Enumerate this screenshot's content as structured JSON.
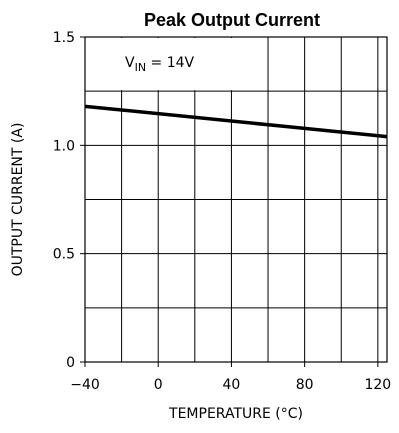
{
  "chart_data": {
    "type": "line",
    "title": "Peak Output Current",
    "xlabel": "TEMPERATURE (°C)",
    "ylabel": "OUTPUT CURRENT (A)",
    "xlim": [
      -40,
      125
    ],
    "ylim": [
      0,
      1.5
    ],
    "x_ticks": [
      -40,
      0,
      40,
      80,
      120
    ],
    "x_tick_labels": [
      "−40",
      "0",
      "40",
      "80",
      "120"
    ],
    "y_ticks": [
      0,
      0.5,
      1.0,
      1.5
    ],
    "y_tick_labels": [
      "0",
      "0.5",
      "1.0",
      "1.5"
    ],
    "x_grid": [
      -40,
      -20,
      0,
      20,
      40,
      60,
      80,
      100,
      120
    ],
    "y_grid": [
      0,
      0.25,
      0.5,
      0.75,
      1.0,
      1.25,
      1.5
    ],
    "grid": true,
    "annotation": {
      "base": "V",
      "subscript": "IN",
      "text": " = 14V"
    },
    "series": [
      {
        "x": [
          -40,
          125
        ],
        "y": [
          1.18,
          1.04
        ]
      }
    ],
    "colors": {
      "line": "#000000",
      "grid": "#000000",
      "background": "#ffffff"
    }
  }
}
